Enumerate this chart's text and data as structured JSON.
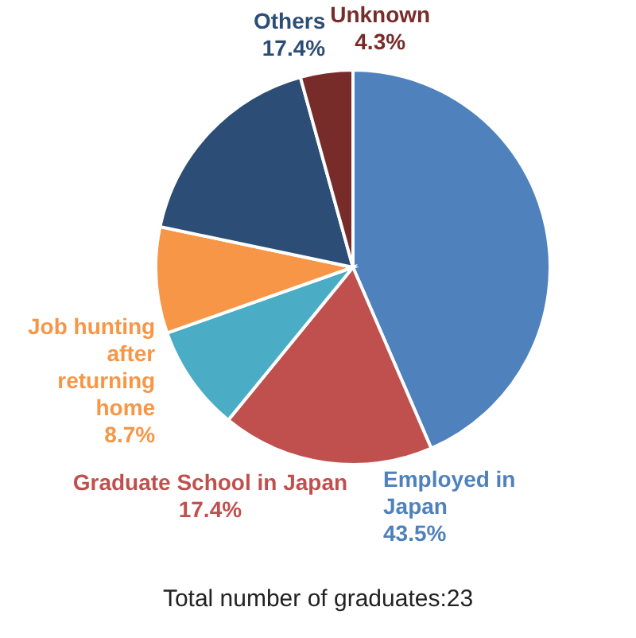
{
  "chart_data": {
    "type": "pie",
    "categories": [
      "Employed in Japan",
      "Graduate School in Japan",
      null,
      "Job hunting after returning home",
      "Others",
      "Unknown"
    ],
    "values": [
      43.5,
      17.4,
      8.7,
      8.7,
      17.4,
      4.3
    ],
    "value_labels": [
      "43.5%",
      "17.4%",
      null,
      "8.7%",
      "17.4%",
      "4.3%"
    ],
    "colors": [
      "#4f81bd",
      "#c0504d",
      "#4bacc6",
      "#f79646",
      "#2c4d75",
      "#772c2a"
    ],
    "annotations": [
      "Total number of graduates:23"
    ]
  }
}
